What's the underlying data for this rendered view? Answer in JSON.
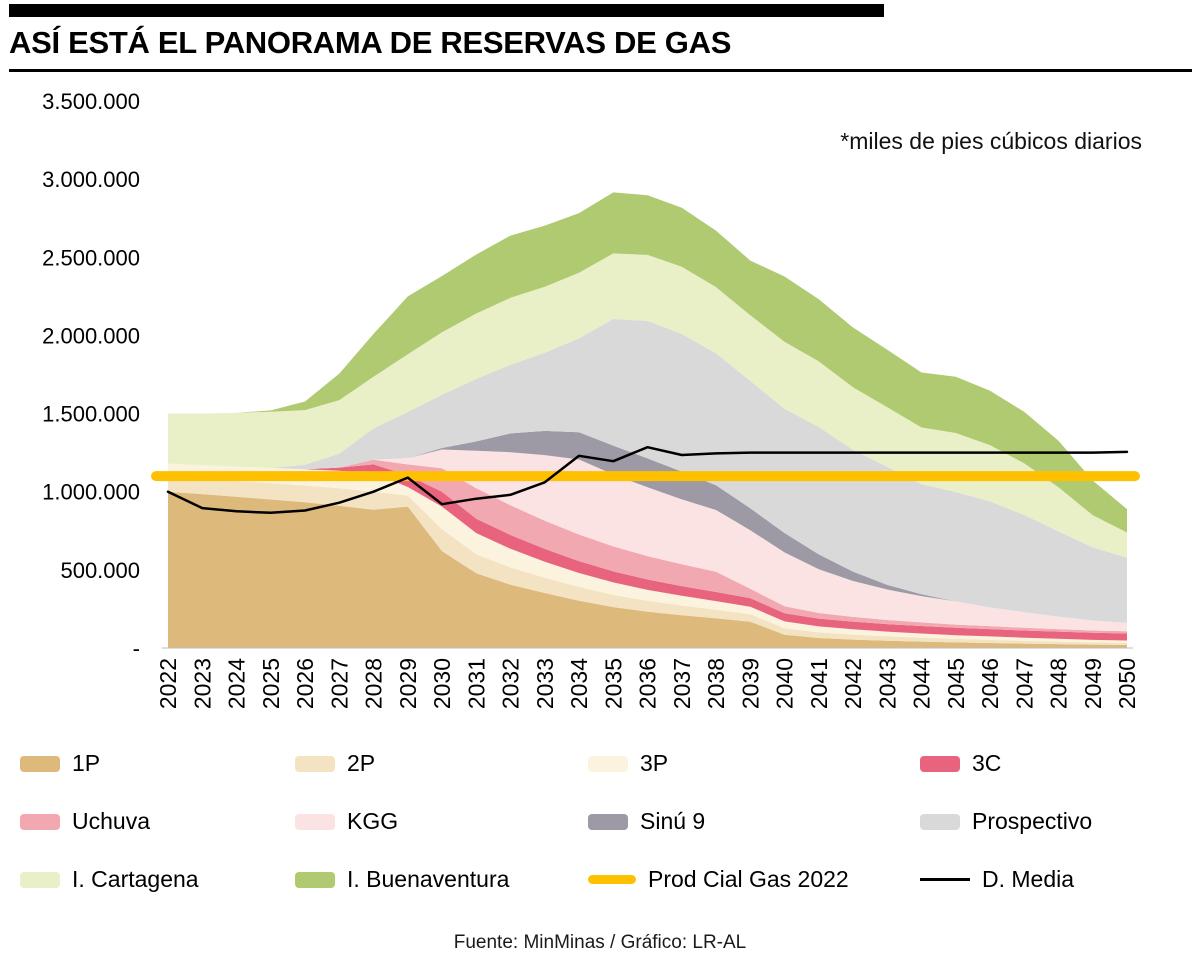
{
  "header": {
    "title": "ASÍ ESTÁ EL PANORAMA DE RESERVAS DE GAS"
  },
  "chart": {
    "note": "*miles de pies cúbicos diarios"
  },
  "footer": {
    "source": "Fuente: MinMinas / Gráfico: LR-AL"
  },
  "chart_data": {
    "type": "area",
    "stacked": true,
    "title": "ASÍ ESTÁ EL PANORAMA DE RESERVAS DE GAS",
    "note": "*miles de pies cúbicos diarios",
    "xlabel": "",
    "ylabel": "",
    "grid": false,
    "legend_position": "bottom",
    "ylim": [
      0,
      3500000
    ],
    "y_ticks": [
      0,
      500000,
      1000000,
      1500000,
      2000000,
      2500000,
      3000000,
      3500000
    ],
    "y_tick_labels": [
      "-",
      "500.000",
      "1.000.000",
      "1.500.000",
      "2.000.000",
      "2.500.000",
      "3.000.000",
      "3.500.000"
    ],
    "x": [
      2022,
      2023,
      2024,
      2025,
      2026,
      2027,
      2028,
      2029,
      2030,
      2031,
      2032,
      2033,
      2034,
      2035,
      2036,
      2037,
      2038,
      2039,
      2040,
      2041,
      2042,
      2043,
      2044,
      2045,
      2046,
      2047,
      2048,
      2049,
      2050
    ],
    "series": [
      {
        "name": "1P",
        "kind": "area",
        "color": "#DDB97C",
        "values": [
          1000000,
          985000,
          968000,
          950000,
          932000,
          910000,
          885000,
          905000,
          620000,
          478000,
          405000,
          352000,
          302000,
          262000,
          232000,
          210000,
          190000,
          168000,
          85000,
          64000,
          54000,
          47000,
          41000,
          36000,
          32000,
          28000,
          25000,
          22000,
          20000
        ]
      },
      {
        "name": "2P",
        "kind": "area",
        "color": "#F3E3C3",
        "values": [
          95000,
          97000,
          100000,
          105000,
          108000,
          112000,
          115000,
          70000,
          140000,
          122000,
          110000,
          98000,
          88000,
          78000,
          70000,
          62000,
          55000,
          48000,
          42000,
          36000,
          32000,
          28000,
          25000,
          22000,
          20000,
          18000,
          16000,
          14000,
          13000
        ]
      },
      {
        "name": "3P",
        "kind": "area",
        "color": "#FBF3DD",
        "values": [
          85000,
          88000,
          92000,
          97000,
          104000,
          112000,
          120000,
          55000,
          145000,
          135000,
          120000,
          102000,
          90000,
          80000,
          70000,
          62000,
          55000,
          48000,
          43000,
          38000,
          34000,
          30000,
          27000,
          24000,
          22000,
          20000,
          18000,
          16000,
          15000
        ]
      },
      {
        "name": "3C",
        "kind": "area",
        "color": "#E8637E",
        "values": [
          0,
          0,
          0,
          0,
          0,
          20000,
          55000,
          75000,
          95000,
          92000,
          88000,
          82000,
          76000,
          70000,
          66000,
          62000,
          58000,
          55000,
          52000,
          50000,
          49000,
          48000,
          48000,
          47000,
          47000,
          46000,
          46000,
          45000,
          45000
        ]
      },
      {
        "name": "Uchuva",
        "kind": "area",
        "color": "#F2A8B0",
        "values": [
          0,
          0,
          0,
          0,
          0,
          0,
          30000,
          70000,
          150000,
          195000,
          190000,
          180000,
          170000,
          160000,
          150000,
          140000,
          130000,
          60000,
          45000,
          36000,
          30000,
          26000,
          23000,
          21000,
          19000,
          17000,
          16000,
          15000,
          14000
        ]
      },
      {
        "name": "KGG",
        "kind": "area",
        "color": "#FBE3E4",
        "values": [
          0,
          0,
          0,
          0,
          0,
          0,
          0,
          40000,
          120000,
          240000,
          340000,
          420000,
          480000,
          460000,
          440000,
          415000,
          395000,
          375000,
          345000,
          280000,
          230000,
          195000,
          168000,
          148000,
          120000,
          100000,
          80000,
          64000,
          54000
        ]
      },
      {
        "name": "Sinú 9",
        "kind": "area",
        "color": "#9D9AA5",
        "values": [
          0,
          0,
          0,
          0,
          0,
          0,
          0,
          0,
          10000,
          60000,
          120000,
          155000,
          175000,
          185000,
          185000,
          178000,
          158000,
          140000,
          124000,
          95000,
          60000,
          30000,
          12000,
          0,
          0,
          0,
          0,
          0,
          0
        ]
      },
      {
        "name": "Prospectivo",
        "kind": "area",
        "color": "#D9D9D9",
        "values": [
          0,
          0,
          0,
          0,
          28000,
          90000,
          200000,
          295000,
          340000,
          400000,
          440000,
          500000,
          600000,
          810000,
          880000,
          880000,
          845000,
          815000,
          795000,
          815000,
          780000,
          755000,
          705000,
          700000,
          678000,
          622000,
          545000,
          468000,
          418000
        ]
      },
      {
        "name": "I. Cartagena",
        "kind": "area",
        "color": "#E9F0C8",
        "values": [
          320000,
          330000,
          345000,
          360000,
          350000,
          342000,
          330000,
          370000,
          400000,
          418000,
          428000,
          422000,
          420000,
          420000,
          422000,
          430000,
          423000,
          420000,
          428000,
          420000,
          400000,
          382000,
          362000,
          378000,
          360000,
          330000,
          282000,
          205000,
          160000
        ]
      },
      {
        "name": "I. Buenaventura",
        "kind": "area",
        "color": "#AFCA70",
        "values": [
          0,
          0,
          0,
          8000,
          55000,
          170000,
          275000,
          370000,
          360000,
          378000,
          398000,
          392000,
          382000,
          390000,
          382000,
          378000,
          362000,
          350000,
          418000,
          398000,
          382000,
          368000,
          352000,
          360000,
          348000,
          330000,
          298000,
          222000,
          150000
        ]
      },
      {
        "name": "Prod Cial Gas 2022",
        "kind": "line",
        "color": "#FFC000",
        "stroke_width": 10,
        "constant": 1100000
      },
      {
        "name": "D. Media",
        "kind": "line",
        "color": "#000000",
        "stroke_width": 2.5,
        "values": [
          1000000,
          895000,
          875000,
          865000,
          880000,
          930000,
          1000000,
          1090000,
          920000,
          955000,
          980000,
          1060000,
          1230000,
          1195000,
          1285000,
          1235000,
          1245000,
          1250000,
          1250000,
          1250000,
          1250000,
          1250000,
          1250000,
          1250000,
          1250000,
          1250000,
          1250000,
          1250000,
          1255000
        ]
      }
    ]
  },
  "legend": {
    "items": [
      {
        "label": "1P",
        "swatch": "area",
        "color": "#DDB97C"
      },
      {
        "label": "2P",
        "swatch": "area",
        "color": "#F3E3C3"
      },
      {
        "label": "3P",
        "swatch": "area",
        "color": "#FBF3DD"
      },
      {
        "label": "3C",
        "swatch": "area",
        "color": "#E8637E"
      },
      {
        "label": "Uchuva",
        "swatch": "area",
        "color": "#F2A8B0"
      },
      {
        "label": "KGG",
        "swatch": "area",
        "color": "#FBE3E4"
      },
      {
        "label": "Sinú 9",
        "swatch": "area",
        "color": "#9D9AA5"
      },
      {
        "label": "Prospectivo",
        "swatch": "area",
        "color": "#D9D9D9"
      },
      {
        "label": "I. Cartagena",
        "swatch": "area",
        "color": "#E9F0C8"
      },
      {
        "label": "I. Buenaventura",
        "swatch": "area",
        "color": "#AFCA70"
      },
      {
        "label": "Prod Cial Gas 2022",
        "swatch": "thick-line",
        "color": "#FFC000"
      },
      {
        "label": "D. Media",
        "swatch": "line",
        "color": "#000000"
      }
    ]
  }
}
